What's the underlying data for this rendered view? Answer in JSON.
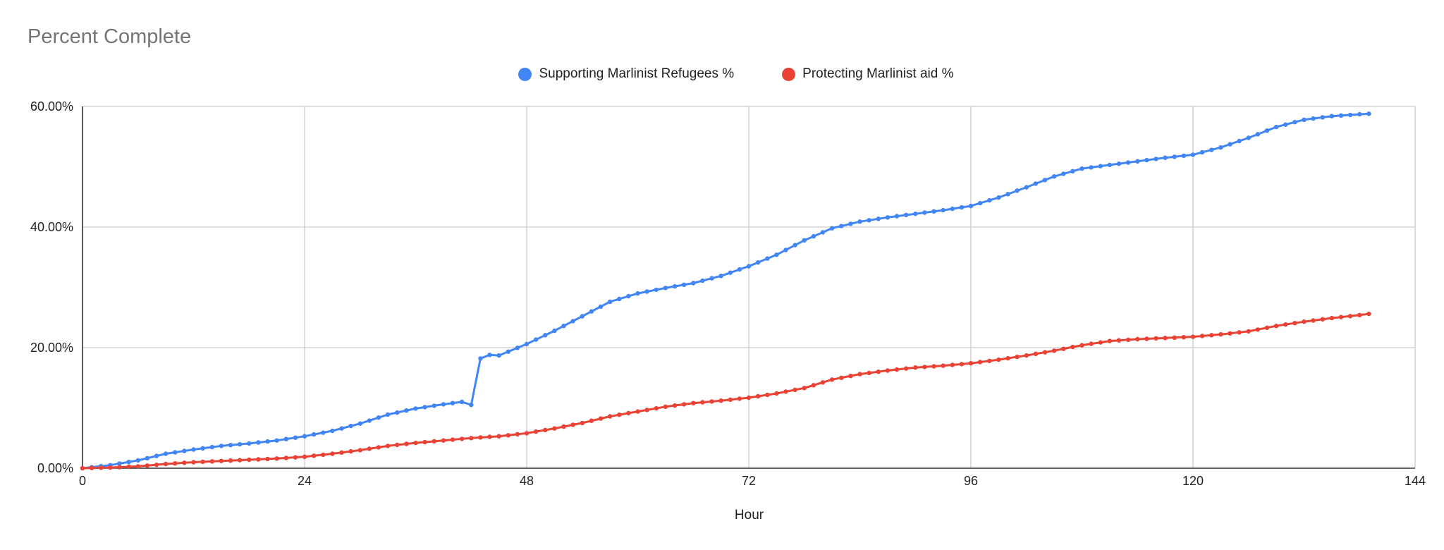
{
  "chart_data": {
    "type": "line",
    "title": "Percent Complete",
    "xlabel": "Hour",
    "ylabel": "",
    "xlim": [
      0,
      144
    ],
    "ylim": [
      0,
      60
    ],
    "x_ticks": [
      "0",
      "24",
      "48",
      "72",
      "96",
      "120",
      "144"
    ],
    "y_ticks": [
      "0.00%",
      "20.00%",
      "40.00%",
      "60.00%"
    ],
    "grid": true,
    "legend_position": "top",
    "series": [
      {
        "name": "Supporting Marlinist Refugees %",
        "color": "#4285f4",
        "x": [
          0,
          3,
          6,
          9,
          12,
          15,
          18,
          21,
          24,
          27,
          30,
          33,
          36,
          39,
          41,
          42,
          43,
          44,
          45,
          48,
          51,
          54,
          57,
          60,
          63,
          66,
          69,
          72,
          75,
          78,
          81,
          84,
          87,
          90,
          93,
          96,
          99,
          102,
          105,
          108,
          111,
          114,
          117,
          120,
          123,
          126,
          129,
          132,
          135,
          138,
          139
        ],
        "values": [
          0,
          0.5,
          1.3,
          2.4,
          3.1,
          3.7,
          4.1,
          4.6,
          5.3,
          6.2,
          7.4,
          8.9,
          9.9,
          10.6,
          11.0,
          10.5,
          18.2,
          18.8,
          18.7,
          20.6,
          22.8,
          25.2,
          27.6,
          29.0,
          29.9,
          30.7,
          31.9,
          33.5,
          35.4,
          37.8,
          39.8,
          40.9,
          41.6,
          42.2,
          42.8,
          43.5,
          44.9,
          46.6,
          48.4,
          49.7,
          50.3,
          50.9,
          51.5,
          52.0,
          53.2,
          54.8,
          56.6,
          57.8,
          58.4,
          58.7,
          58.8
        ]
      },
      {
        "name": "Protecting Marlinist aid %",
        "color": "#ea4335",
        "x": [
          0,
          3,
          6,
          9,
          12,
          15,
          18,
          21,
          24,
          27,
          30,
          33,
          36,
          39,
          42,
          45,
          48,
          51,
          54,
          57,
          60,
          63,
          66,
          69,
          72,
          75,
          78,
          81,
          84,
          87,
          90,
          93,
          96,
          99,
          102,
          105,
          108,
          111,
          114,
          117,
          120,
          123,
          126,
          129,
          132,
          135,
          138,
          139
        ],
        "values": [
          0,
          0.1,
          0.3,
          0.7,
          1.0,
          1.2,
          1.4,
          1.6,
          1.9,
          2.4,
          3.0,
          3.7,
          4.2,
          4.6,
          5.0,
          5.3,
          5.8,
          6.6,
          7.5,
          8.6,
          9.4,
          10.2,
          10.8,
          11.2,
          11.7,
          12.4,
          13.3,
          14.7,
          15.6,
          16.2,
          16.7,
          17.0,
          17.4,
          18.0,
          18.7,
          19.5,
          20.4,
          21.1,
          21.4,
          21.6,
          21.8,
          22.2,
          22.7,
          23.6,
          24.3,
          24.9,
          25.4,
          25.6
        ]
      }
    ]
  }
}
